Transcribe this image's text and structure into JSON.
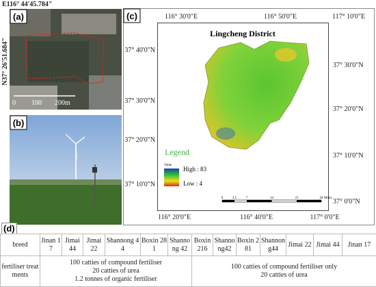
{
  "panel_a": {
    "label": "(a)",
    "lon": "E116° 44'45.784\"",
    "lat": "N37° 26'51.684\"",
    "scale": [
      "0",
      "100",
      "200m"
    ]
  },
  "panel_b": {
    "label": "(b)"
  },
  "panel_c": {
    "label": "(c)",
    "title": "Lingcheng District",
    "top_lon": [
      "116° 30'0\"E",
      "116° 50'0\"E",
      "117° 10'0\"E"
    ],
    "bottom_lon": [
      "116° 20'0\"E",
      "116° 40'0\"E",
      "117° 0'0\"E"
    ],
    "left_lat": [
      "37° 40'0\"N",
      "37° 30'0\"N",
      "37° 20'0\"N",
      "37° 10'0\"N"
    ],
    "right_lat": [
      "37° 30'0\"N",
      "37° 20'0\"N",
      "37° 10'0\"N",
      "37° 0'0\"N"
    ],
    "legend": {
      "title": "Legend",
      "field": "Value",
      "high": "High : 83",
      "low": "Low : 4"
    },
    "scale_bar": {
      "ticks": [
        "0",
        "3.5",
        "7",
        "14",
        "21",
        "28"
      ],
      "unit": "Miles"
    }
  },
  "panel_d": {
    "label": "(d)",
    "header": [
      "breed",
      "Jinan 17",
      "Jimai 44",
      "Jimai 22",
      "Shannong 44",
      "Boxin 281",
      "Shannong 42",
      "Boxin 216",
      "Shannong42",
      "Boxin 281",
      "Shannong44",
      "Jimai 22",
      "Jimai 44",
      "Jinan 17"
    ],
    "row_label": "fertiliser treatments",
    "treatments": [
      [
        "100 catties of compound fertiliser",
        "20 catties of urea",
        "1.2 tonnes of organic fertiliser"
      ],
      [
        "100 catties of compound fertiliser only",
        "20 catties of urea"
      ]
    ]
  }
}
